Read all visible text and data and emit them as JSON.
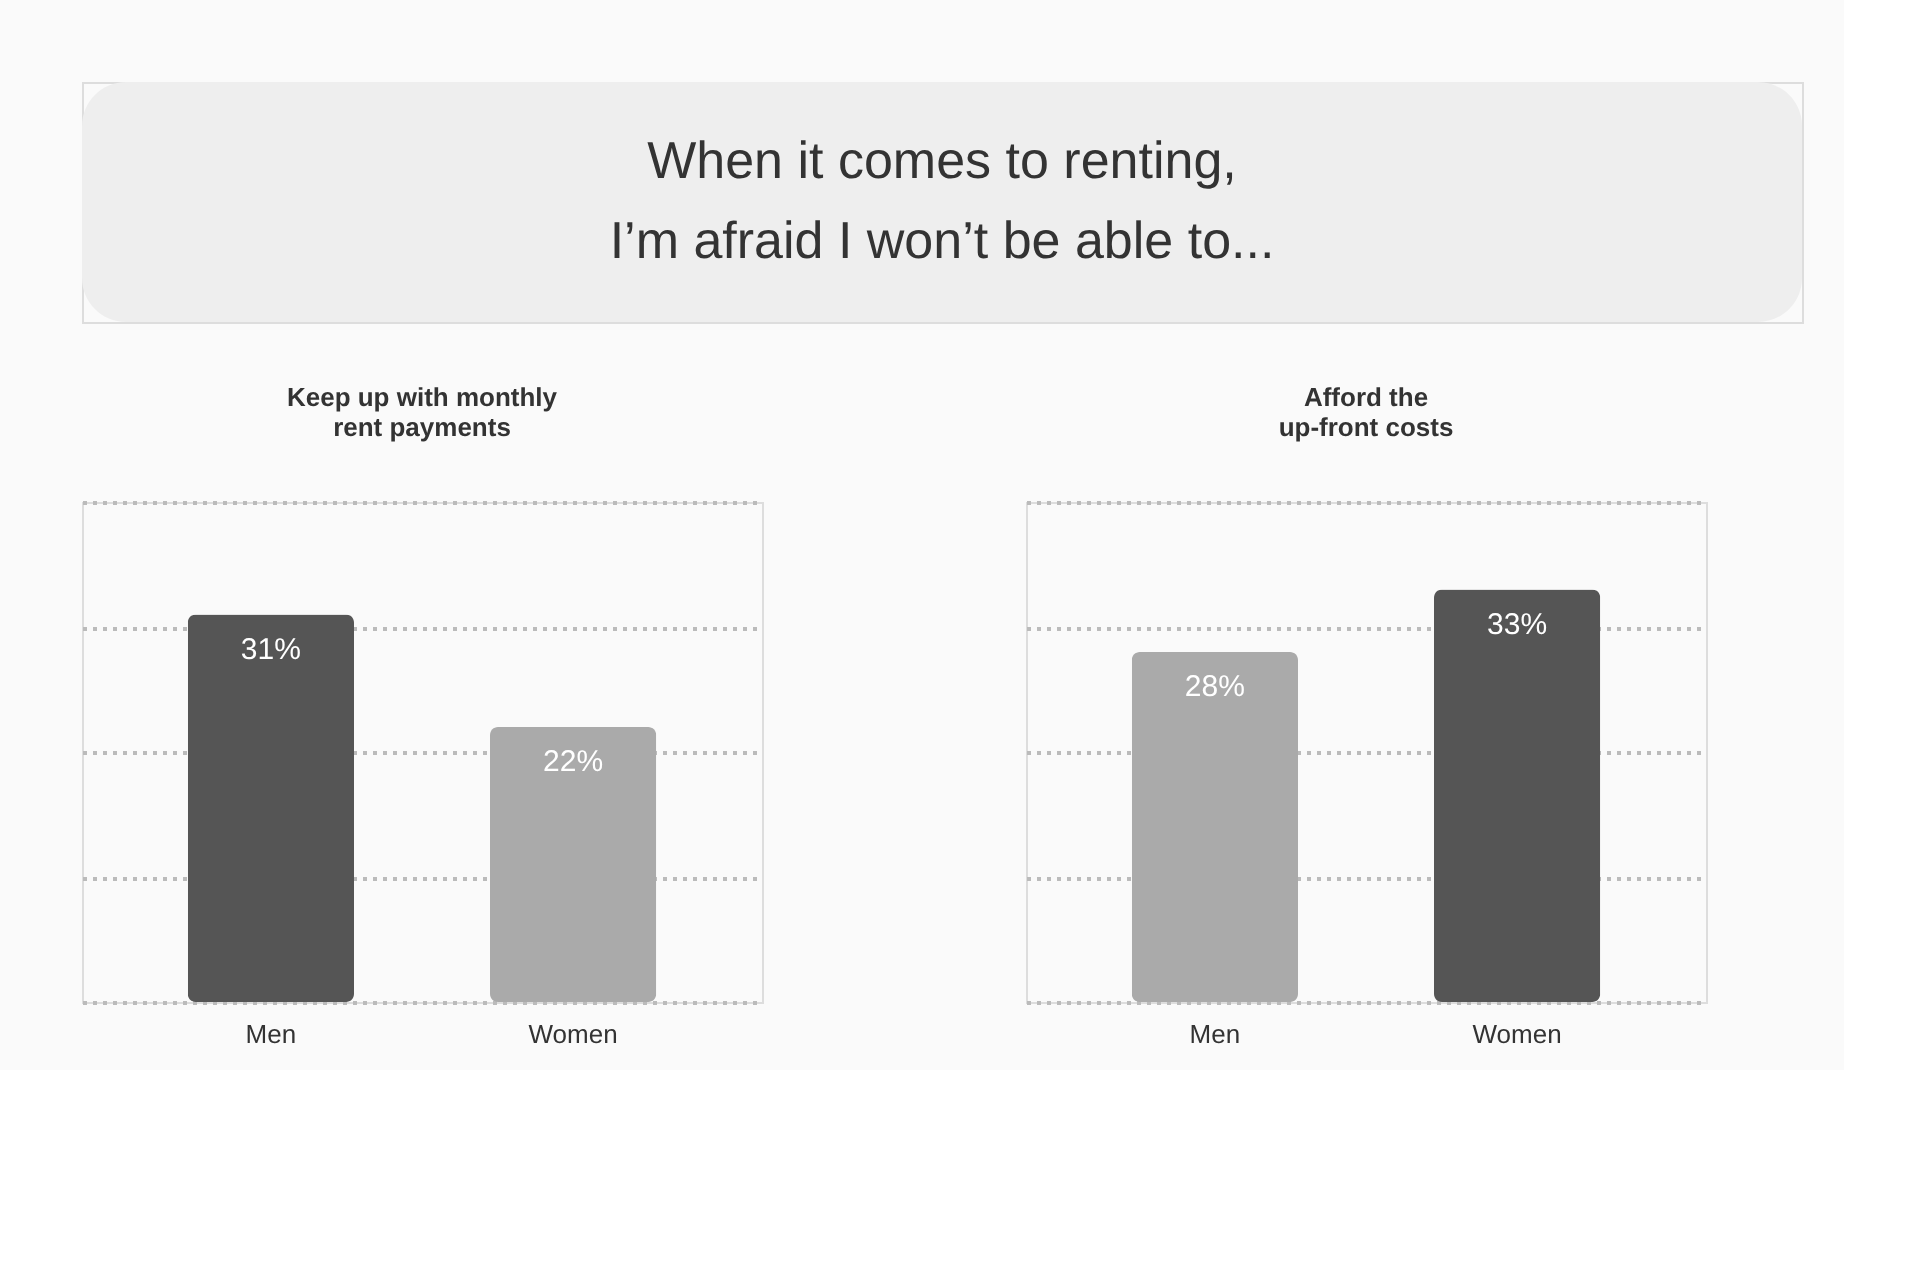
{
  "chart_data": [
    {
      "type": "other",
      "title": "When it comes to renting,\nI’m afraid I won’t be able to..."
    },
    {
      "type": "bar",
      "title": "Keep up with monthly\nrent payments",
      "categories": [
        "Men",
        "Women"
      ],
      "values": [
        31,
        22
      ],
      "colors": [
        "#555555",
        "#aaaaaa"
      ],
      "value_labels": [
        "31%",
        "22%"
      ],
      "ylim": [
        0,
        40
      ],
      "yticks": [
        {
          "value": 0,
          "label": null
        },
        {
          "value": 10,
          "label": null
        },
        {
          "value": 20,
          "label": null
        },
        {
          "value": 30,
          "label": null
        },
        {
          "value": 40,
          "label": null
        }
      ],
      "grid": "y",
      "tick_labels": "x"
    },
    {
      "type": "bar",
      "title": "Afford the\nup-front costs",
      "categories": [
        "Men",
        "Women"
      ],
      "values": [
        28,
        33
      ],
      "colors": [
        "#aaaaaa",
        "#555555"
      ],
      "value_labels": [
        "28%",
        "33%"
      ],
      "ylim": [
        0,
        40
      ],
      "yticks": [
        {
          "value": 0,
          "label": null
        },
        {
          "value": 10,
          "label": null
        },
        {
          "value": 20,
          "label": null
        },
        {
          "value": 30,
          "label": null
        },
        {
          "value": 40,
          "label": null
        }
      ],
      "grid": "y",
      "tick_labels": "x"
    }
  ]
}
